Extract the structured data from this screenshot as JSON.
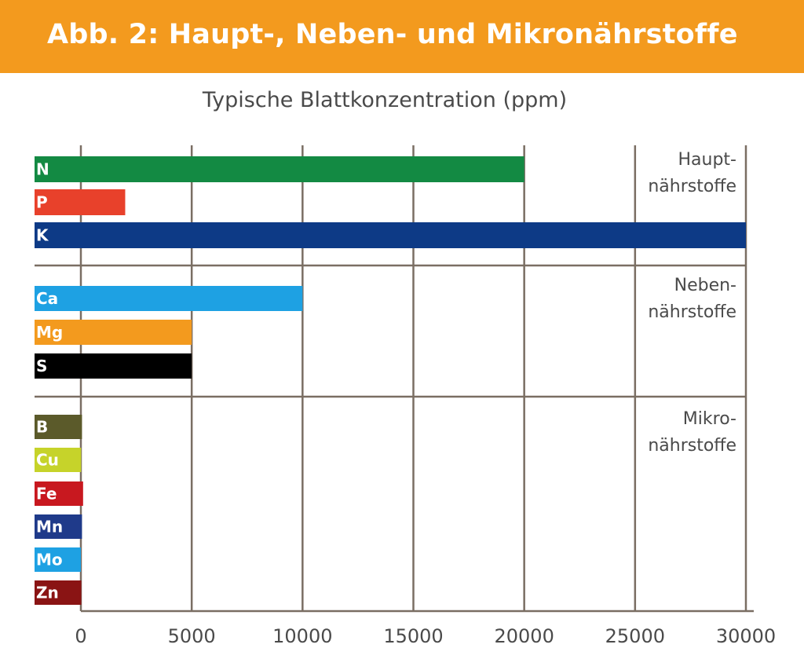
{
  "header": {
    "title": "Abb. 2: Haupt-, Neben- und Mikronährstoffe",
    "bg": "#f39a1e"
  },
  "chart_data": {
    "type": "bar",
    "orientation": "horizontal",
    "title": "Typische Blattkonzentration (ppm)",
    "xlim": [
      0,
      30000
    ],
    "xticks": [
      "0",
      "5000",
      "10000",
      "15000",
      "20000",
      "25000",
      "30000"
    ],
    "grid": true,
    "groups": [
      {
        "label": [
          "Haupt-",
          "nährstoffe"
        ],
        "bars": [
          {
            "label": "N",
            "value": 20000,
            "color": "#138a43"
          },
          {
            "label": "P",
            "value": 2000,
            "color": "#e8412b"
          },
          {
            "label": "K",
            "value": 30000,
            "color": "#0d3a86"
          }
        ]
      },
      {
        "label": [
          "Neben-",
          "nährstoffe"
        ],
        "bars": [
          {
            "label": "Ca",
            "value": 10000,
            "color": "#1ea1e3"
          },
          {
            "label": "Mg",
            "value": 5000,
            "color": "#f39a1e"
          },
          {
            "label": "S",
            "value": 5000,
            "color": "#000000"
          }
        ]
      },
      {
        "label": [
          "Mikro-",
          "nährstoffe"
        ],
        "bars": [
          {
            "label": "B",
            "value": 50,
            "color": "#5b5a2a"
          },
          {
            "label": "Cu",
            "value": 10,
            "color": "#c6d32a"
          },
          {
            "label": "Fe",
            "value": 100,
            "color": "#c8181f"
          },
          {
            "label": "Mn",
            "value": 50,
            "color": "#1f3a8a"
          },
          {
            "label": "Mo",
            "value": 0.1,
            "color": "#1ea1e3"
          },
          {
            "label": "Zn",
            "value": 20,
            "color": "#8a1414"
          }
        ]
      }
    ]
  }
}
